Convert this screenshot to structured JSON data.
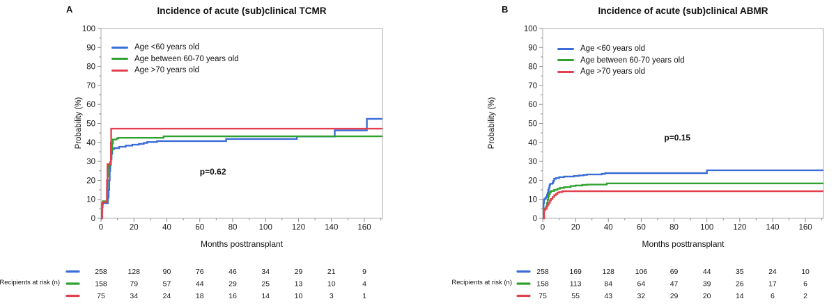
{
  "chart_data": [
    {
      "type": "line",
      "style": "step-after",
      "letter": "A",
      "title": "Incidence of acute (sub)clinical TCMR",
      "annotation": {
        "text": "p=0.62",
        "x_month": 68,
        "y_pct": 23
      },
      "x_axis": {
        "label": "Months posttransplant",
        "min": 0,
        "max": 171,
        "major_tick_step": 20,
        "minor_tick_step": 10,
        "last_labeled_tick": 160
      },
      "y_axis": {
        "label": "Probability (%)",
        "min": 0,
        "max": 100,
        "major_tick_step": 10,
        "minor_tick_step": 5
      },
      "legend": [
        {
          "label": "Age <60 years old",
          "color": "#3A6CD6"
        },
        {
          "label": "Age between 60-70 years old",
          "color": "#2FA12F"
        },
        {
          "label": "Age >70 years old",
          "color": "#E2404F"
        }
      ],
      "series": [
        {
          "name": "Age <60 years old",
          "color": "#3A6CD6",
          "points": [
            [
              0,
              0
            ],
            [
              0.5,
              3
            ],
            [
              0.8,
              7.5
            ],
            [
              1.2,
              8
            ],
            [
              3.8,
              8
            ],
            [
              4.2,
              11
            ],
            [
              4.6,
              15
            ],
            [
              5,
              20
            ],
            [
              5.3,
              25
            ],
            [
              5.6,
              28
            ],
            [
              6,
              31
            ],
            [
              6.4,
              34
            ],
            [
              6.8,
              36.5
            ],
            [
              8,
              37
            ],
            [
              11,
              37.7
            ],
            [
              15,
              38.3
            ],
            [
              19,
              38.8
            ],
            [
              23,
              39.2
            ],
            [
              26,
              39.7
            ],
            [
              28,
              40.2
            ],
            [
              34,
              40.7
            ],
            [
              76,
              41.8
            ],
            [
              119,
              43.1
            ],
            [
              142,
              46.3
            ],
            [
              161.5,
              52.4
            ],
            [
              171,
              52.4
            ]
          ]
        },
        {
          "name": "Age between 60-70 years old",
          "color": "#2FA12F",
          "points": [
            [
              0,
              0
            ],
            [
              0.6,
              8
            ],
            [
              1,
              9
            ],
            [
              3.3,
              9
            ],
            [
              3.6,
              16
            ],
            [
              3.9,
              22
            ],
            [
              4.2,
              26
            ],
            [
              4.6,
              28
            ],
            [
              5.4,
              29.5
            ],
            [
              6,
              32
            ],
            [
              6.4,
              36
            ],
            [
              6.8,
              39.5
            ],
            [
              7.2,
              41.5
            ],
            [
              9.5,
              42.1
            ],
            [
              10.5,
              42.4
            ],
            [
              38,
              43.2
            ],
            [
              171,
              43.2
            ]
          ]
        },
        {
          "name": "Age >70 years old",
          "color": "#E2404F",
          "points": [
            [
              0,
              0
            ],
            [
              0.7,
              6
            ],
            [
              1,
              8.5
            ],
            [
              3.3,
              8.5
            ],
            [
              3.6,
              20
            ],
            [
              3.9,
              28.5
            ],
            [
              5.8,
              28.5
            ],
            [
              6,
              40
            ],
            [
              6.2,
              47.2
            ],
            [
              171,
              47.2
            ]
          ]
        }
      ],
      "risk_table": {
        "label": "Recipients at risk (n)",
        "months": [
          0,
          20,
          40,
          60,
          80,
          100,
          120,
          140,
          160
        ],
        "rows": [
          {
            "name": "Age <60 years old",
            "color": "#3A6CD6",
            "values": [
              258,
              128,
              90,
              76,
              46,
              34,
              29,
              21,
              9
            ]
          },
          {
            "name": "Age between 60-70 years old",
            "color": "#2FA12F",
            "values": [
              158,
              79,
              57,
              44,
              29,
              25,
              13,
              10,
              4
            ]
          },
          {
            "name": "Age >70 years old",
            "color": "#E2404F",
            "values": [
              75,
              34,
              24,
              18,
              16,
              14,
              10,
              3,
              1
            ]
          }
        ]
      }
    },
    {
      "type": "line",
      "style": "step-after",
      "letter": "B",
      "title": "Incidence of acute (sub)clinical ABMR",
      "annotation": {
        "text": "p=0.15",
        "x_month": 82,
        "y_pct": 41
      },
      "x_axis": {
        "label": "Months posttransplant",
        "min": 0,
        "max": 171,
        "major_tick_step": 20,
        "minor_tick_step": 10,
        "last_labeled_tick": 160
      },
      "y_axis": {
        "label": "Probability (%)",
        "min": 0,
        "max": 100,
        "major_tick_step": 10,
        "minor_tick_step": 5
      },
      "legend": [
        {
          "label": "Age <60 years old",
          "color": "#3A6CD6"
        },
        {
          "label": "Age between 60-70 years old",
          "color": "#2FA12F"
        },
        {
          "label": "Age >70 years old",
          "color": "#E2404F"
        }
      ],
      "series": [
        {
          "name": "Age <60 years old",
          "color": "#3A6CD6",
          "points": [
            [
              0,
              0
            ],
            [
              0.5,
              8
            ],
            [
              0.8,
              10
            ],
            [
              1.5,
              10.5
            ],
            [
              2,
              11.2
            ],
            [
              2.6,
              12.5
            ],
            [
              3,
              13.5
            ],
            [
              3.4,
              15
            ],
            [
              3.8,
              16.2
            ],
            [
              4.2,
              17.5
            ],
            [
              4.6,
              18.2
            ],
            [
              6,
              18.7
            ],
            [
              6.5,
              19.8
            ],
            [
              7,
              20.8
            ],
            [
              8,
              21.2
            ],
            [
              10,
              21.7
            ],
            [
              13,
              22
            ],
            [
              19,
              22.3
            ],
            [
              22,
              22.6
            ],
            [
              25,
              22.9
            ],
            [
              27,
              23.1
            ],
            [
              36,
              23.4
            ],
            [
              38,
              23.8
            ],
            [
              100,
              25.3
            ],
            [
              171,
              25.3
            ]
          ]
        },
        {
          "name": "Age between 60-70 years old",
          "color": "#2FA12F",
          "points": [
            [
              0,
              0
            ],
            [
              0.6,
              4.5
            ],
            [
              1.2,
              5.2
            ],
            [
              2,
              6.2
            ],
            [
              2.6,
              8
            ],
            [
              3,
              9.8
            ],
            [
              3.4,
              11.5
            ],
            [
              3.8,
              12.8
            ],
            [
              4.4,
              13.8
            ],
            [
              5,
              14.4
            ],
            [
              7,
              15
            ],
            [
              9,
              15.6
            ],
            [
              10.5,
              16
            ],
            [
              13,
              16.4
            ],
            [
              17,
              17
            ],
            [
              20,
              17.3
            ],
            [
              24,
              17.6
            ],
            [
              27,
              17.8
            ],
            [
              39,
              18.4
            ],
            [
              171,
              18.4
            ]
          ]
        },
        {
          "name": "Age >70 years old",
          "color": "#E2404F",
          "points": [
            [
              0,
              0
            ],
            [
              0.9,
              4.3
            ],
            [
              1.5,
              5
            ],
            [
              2.4,
              6.3
            ],
            [
              3,
              7.2
            ],
            [
              3.6,
              8.2
            ],
            [
              4.4,
              9.4
            ],
            [
              5,
              10.2
            ],
            [
              6,
              11.2
            ],
            [
              7,
              12.2
            ],
            [
              8,
              12.8
            ],
            [
              9,
              13.5
            ],
            [
              10,
              13.8
            ],
            [
              12,
              14.3
            ],
            [
              171,
              14.3
            ]
          ]
        }
      ],
      "risk_table": {
        "label": "Recipients at risk (n)",
        "months": [
          0,
          20,
          40,
          60,
          80,
          100,
          120,
          140,
          160
        ],
        "rows": [
          {
            "name": "Age <60 years old",
            "color": "#3A6CD6",
            "values": [
              258,
              169,
              128,
              106,
              69,
              44,
              35,
              24,
              10
            ]
          },
          {
            "name": "Age between 60-70 years old",
            "color": "#2FA12F",
            "values": [
              158,
              113,
              84,
              64,
              47,
              39,
              26,
              17,
              6
            ]
          },
          {
            "name": "Age >70 years old",
            "color": "#E2404F",
            "values": [
              75,
              55,
              43,
              32,
              29,
              20,
              14,
              6,
              2
            ]
          }
        ]
      }
    }
  ]
}
